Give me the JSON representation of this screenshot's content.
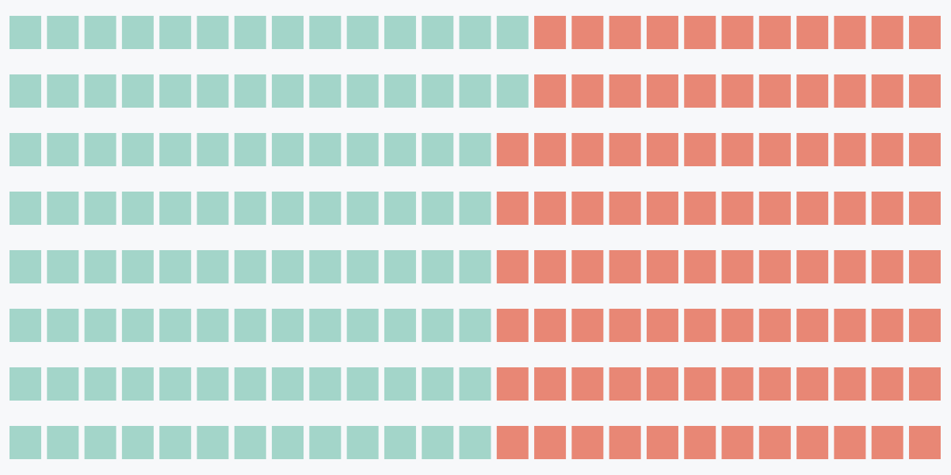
{
  "chart_data": {
    "type": "waffle",
    "values": [
      106,
      94
    ],
    "colors": [
      "#a3d5c9",
      "#e88775"
    ],
    "rows": 8,
    "columns": 25,
    "fill_order": "column"
  }
}
